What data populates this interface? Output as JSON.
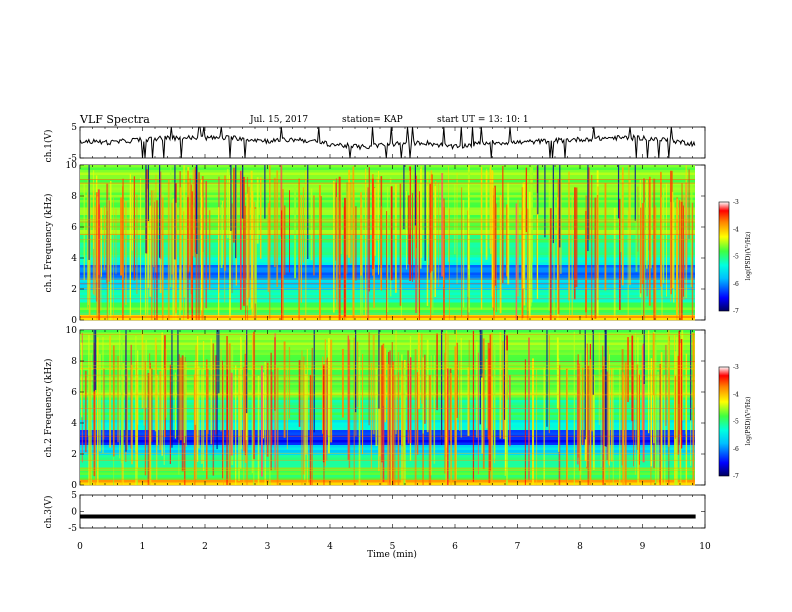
{
  "header": {
    "title": "VLF Spectra",
    "date": "Jul. 15, 2017",
    "station": "station= KAP",
    "start": "start UT =  13: 10: 1"
  },
  "chart_data": [
    {
      "type": "line",
      "panel": "ch1-waveform",
      "ylabel": "ch.1(V)",
      "ylim": [
        -5,
        5
      ],
      "yticks": [
        "5",
        "-5"
      ],
      "xlim": [
        0,
        10
      ],
      "x": [
        0,
        0.5,
        1,
        1.5,
        2,
        2.5,
        3,
        3.5,
        4,
        4.5,
        5,
        5.5,
        6,
        6.5,
        7,
        7.5,
        8,
        8.5,
        9,
        9.5,
        9.85
      ],
      "y": [
        0.5,
        0,
        1,
        1.5,
        1.5,
        1.5,
        0.5,
        1,
        -0.5,
        -1.5,
        -0.5,
        0,
        -1.5,
        0,
        0,
        0.5,
        1,
        1.5,
        1.5,
        0.5,
        -0.5
      ]
    },
    {
      "type": "heatmap",
      "panel": "ch1-spectrogram",
      "ylabel": "ch.1 Frequency (kHz)",
      "ylim": [
        0,
        10
      ],
      "yticks": [
        "0",
        "2",
        "4",
        "6",
        "8",
        "10"
      ],
      "xlim": [
        0,
        10
      ],
      "colorbar": {
        "label": "log(PSD)(V²/Hz)",
        "range": [
          -7,
          -3
        ],
        "ticks": [
          "-3",
          "-4",
          "-5",
          "-6",
          "-7"
        ]
      }
    },
    {
      "type": "heatmap",
      "panel": "ch2-spectrogram",
      "ylabel": "ch.2 Frequency (kHz)",
      "ylim": [
        0,
        10
      ],
      "yticks": [
        "0",
        "2",
        "4",
        "6",
        "8",
        "10"
      ],
      "xlim": [
        0,
        10
      ],
      "colorbar": {
        "label": "log(PSD)(V²/Hz)",
        "range": [
          -7,
          -3
        ],
        "ticks": [
          "-3",
          "-4",
          "-5",
          "-6",
          "-7"
        ]
      }
    },
    {
      "type": "line",
      "panel": "ch3-waveform",
      "ylabel": "ch.3(V)",
      "ylim": [
        -5,
        5
      ],
      "yticks": [
        "5",
        "0",
        "-5"
      ],
      "xlim": [
        0,
        10
      ],
      "x": [
        0,
        9.85
      ],
      "y": [
        -1.5,
        -1.5
      ]
    }
  ],
  "xaxis": {
    "label": "Time (min)",
    "ticks": [
      "0",
      "1",
      "2",
      "3",
      "4",
      "5",
      "6",
      "7",
      "8",
      "9",
      "10"
    ]
  }
}
